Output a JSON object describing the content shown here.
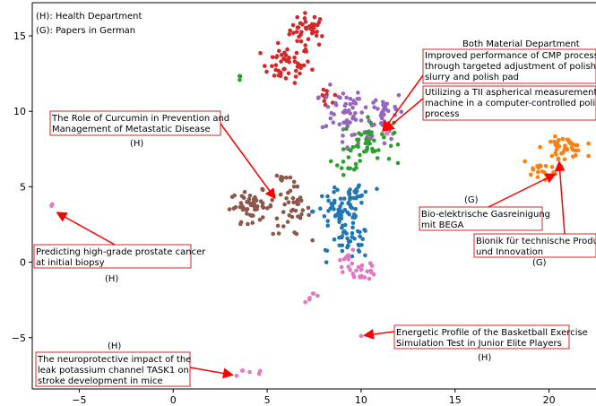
{
  "chart_data": {
    "type": "scatter",
    "title": "",
    "xlabel": "",
    "ylabel": "",
    "xlim": [
      -7.5,
      22.5
    ],
    "ylim": [
      -8.4,
      17.2
    ],
    "grid": false,
    "x_ticks": [
      -5,
      0,
      5,
      10,
      15,
      20
    ],
    "y_ticks": [
      -5,
      0,
      5,
      10,
      15
    ],
    "notes": [
      "(H): Health Department",
      "(G): Papers in German"
    ],
    "colors": {
      "red": "#d62728",
      "purple": "#9467bd",
      "green": "#2ca02c",
      "brown": "#8c564b",
      "blue": "#1f77b4",
      "pink": "#e377c2",
      "orange": "#ff7f0e",
      "annotation": "#ff0000"
    },
    "series": [
      {
        "color_key": "red",
        "clusters": [
          {
            "cx": 7.2,
            "cy": 15.4,
            "rx": 0.9,
            "ry": 1.0,
            "n": 40
          },
          {
            "cx": 6.0,
            "cy": 13.1,
            "rx": 1.2,
            "ry": 1.1,
            "n": 48
          },
          {
            "cx": 8.2,
            "cy": 10.8,
            "rx": 0.5,
            "ry": 0.6,
            "n": 10
          }
        ]
      },
      {
        "color_key": "purple",
        "clusters": [
          {
            "cx": 9.0,
            "cy": 10.1,
            "rx": 1.0,
            "ry": 1.4,
            "n": 45
          },
          {
            "cx": 11.2,
            "cy": 10.0,
            "rx": 1.0,
            "ry": 1.3,
            "n": 35
          },
          {
            "cx": 10.0,
            "cy": 8.3,
            "rx": 1.3,
            "ry": 0.6,
            "n": 18
          }
        ]
      },
      {
        "color_key": "green",
        "clusters": [
          {
            "cx": 10.4,
            "cy": 8.0,
            "rx": 1.2,
            "ry": 1.3,
            "n": 45
          },
          {
            "cx": 9.3,
            "cy": 6.6,
            "rx": 0.7,
            "ry": 0.7,
            "n": 12
          },
          {
            "cx": 3.6,
            "cy": 12.2,
            "rx": 0.3,
            "ry": 0.15,
            "n": 3
          }
        ]
      },
      {
        "color_key": "brown",
        "clusters": [
          {
            "cx": 4.2,
            "cy": 3.7,
            "rx": 1.1,
            "ry": 0.9,
            "n": 50
          },
          {
            "cx": 6.3,
            "cy": 3.4,
            "rx": 0.9,
            "ry": 1.5,
            "n": 38
          },
          {
            "cx": 5.9,
            "cy": 5.6,
            "rx": 0.5,
            "ry": 0.3,
            "n": 8
          }
        ]
      },
      {
        "color_key": "blue",
        "clusters": [
          {
            "cx": 8.9,
            "cy": 3.4,
            "rx": 1.3,
            "ry": 1.2,
            "n": 55
          },
          {
            "cx": 9.4,
            "cy": 1.3,
            "rx": 1.0,
            "ry": 1.0,
            "n": 38
          },
          {
            "cx": 9.8,
            "cy": 4.6,
            "rx": 0.8,
            "ry": 0.7,
            "n": 18
          }
        ]
      },
      {
        "color_key": "pink",
        "clusters": [
          {
            "cx": 10.0,
            "cy": -0.6,
            "rx": 0.8,
            "ry": 0.5,
            "n": 25
          },
          {
            "cx": 9.4,
            "cy": 0.3,
            "rx": 0.5,
            "ry": 0.4,
            "n": 8
          },
          {
            "cx": 7.4,
            "cy": -2.3,
            "rx": 0.4,
            "ry": 0.3,
            "n": 6
          },
          {
            "cx": -6.4,
            "cy": 3.8,
            "rx": 0.1,
            "ry": 0.05,
            "n": 2
          },
          {
            "cx": 10.0,
            "cy": -4.9,
            "rx": 0.05,
            "ry": 0.05,
            "n": 1
          },
          {
            "cx": 4.0,
            "cy": -7.3,
            "rx": 0.8,
            "ry": 0.3,
            "n": 6
          },
          {
            "cx": 11.3,
            "cy": 8.6,
            "rx": 0.3,
            "ry": 0.3,
            "n": 4
          }
        ]
      },
      {
        "color_key": "orange",
        "clusters": [
          {
            "cx": 20.8,
            "cy": 7.6,
            "rx": 1.0,
            "ry": 0.6,
            "n": 40
          },
          {
            "cx": 19.5,
            "cy": 6.2,
            "rx": 0.9,
            "ry": 0.6,
            "n": 20
          }
        ]
      }
    ],
    "annotations": [
      {
        "text": [
          "Both Material Department"
        ],
        "kind": "plain"
      },
      {
        "text": [
          "Improved performance of CMP processes",
          "through targeted adjustment of polishing",
          "slurry and polish pad"
        ],
        "target": [
          11.0,
          9.4
        ]
      },
      {
        "text": [
          "Utilizing a TII aspherical measurement",
          "machine in a computer-controlled polishing",
          "process"
        ],
        "target": [
          11.0,
          9.4
        ]
      },
      {
        "text": [
          "The Role of Curcumin in Prevention and",
          "Management of Metastatic Disease"
        ],
        "tag": "(H)",
        "target": [
          5.6,
          4.6
        ]
      },
      {
        "text": [
          "Predicting high-grade prostate cancer",
          " at initial biopsy"
        ],
        "tag": "(H)",
        "target": [
          -6.4,
          3.8
        ]
      },
      {
        "text": [
          "Bio-elektrische Gasreinigung",
          "mit BEGA"
        ],
        "tag": "(G)",
        "target": [
          20.3,
          6.3
        ]
      },
      {
        "text": [
          "Bionik für technische Produkte",
          "und Innovation"
        ],
        "tag": "(G)",
        "target": [
          20.7,
          7.2
        ]
      },
      {
        "text": [
          "Energetic Profile of the Basketball Exercise",
          "Simulation Test in Junior Elite Players"
        ],
        "tag": "(H)",
        "target": [
          10.2,
          -4.9
        ]
      },
      {
        "text": [
          "The neuroprotective impact of the",
          "leak potassium channel TASK1 on",
          "stroke development in mice"
        ],
        "tag": "(H)",
        "target": [
          3.5,
          -7.5
        ]
      }
    ]
  }
}
